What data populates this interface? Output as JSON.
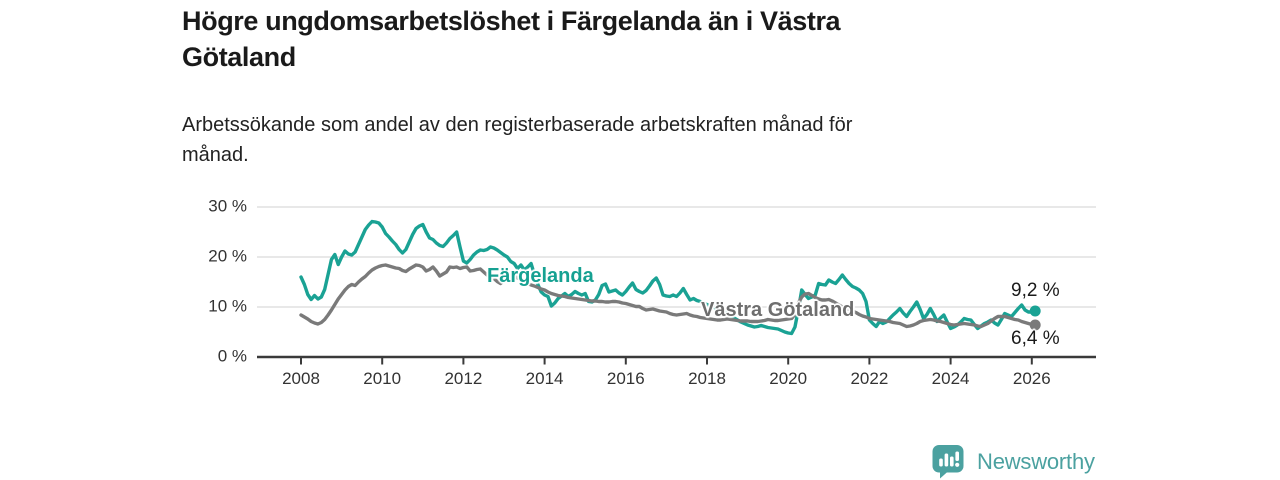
{
  "header": {
    "title": "Högre ungdomsarbetslöshet i Färgelanda än i Västra Götaland",
    "title_lines": [
      "Högre ungdomsarbetslöshet i Färgelanda än i Västra",
      "Götaland"
    ],
    "subtitle": "Arbetssökande som andel av den registerbaserade arbetskraften månad för månad.",
    "subtitle_lines": [
      "Arbetssökande som andel av den registerbaserade arbetskraften månad för",
      "månad."
    ]
  },
  "footer": {
    "brand": "Newsworthy",
    "brand_color": "#4ba1a0"
  },
  "colors": {
    "accent_teal": "#1aa294",
    "neutral_gray": "#7a7a7a",
    "gridline": "#d9d9d9",
    "axis": "#3a3a3a",
    "text_dark": "#1a1a1a"
  },
  "chart_data": {
    "type": "line",
    "title": "Högre ungdomsarbetslöshet i Färgelanda än i Västra Götaland",
    "subtitle": "Arbetssökande som andel av den registerbaserade arbetskraften månad för månad.",
    "x_unit": "month",
    "x_start": "2008-01",
    "x_end": "2026-02",
    "ylim": [
      0,
      33
    ],
    "grid": "horizontal",
    "legend_position": "inline-labels",
    "y_ticks": [
      {
        "value": 0,
        "label": "0 %"
      },
      {
        "value": 10,
        "label": "10 %"
      },
      {
        "value": 20,
        "label": "20 %"
      },
      {
        "value": 30,
        "label": "30 %"
      }
    ],
    "x_ticks": [
      {
        "year": 2008,
        "label": "2008"
      },
      {
        "year": 2010,
        "label": "2010"
      },
      {
        "year": 2012,
        "label": "2012"
      },
      {
        "year": 2014,
        "label": "2014"
      },
      {
        "year": 2016,
        "label": "2016"
      },
      {
        "year": 2018,
        "label": "2018"
      },
      {
        "year": 2020,
        "label": "2020"
      },
      {
        "year": 2022,
        "label": "2022"
      },
      {
        "year": 2024,
        "label": "2024"
      },
      {
        "year": 2026,
        "label": "2026"
      }
    ],
    "series": [
      {
        "id": "fargelanda",
        "name": "Färgelanda",
        "color": "#1aa294",
        "end_value": 9.2,
        "end_label": "9,2 %",
        "values": [
          16.0,
          14.5,
          12.5,
          11.5,
          12.3,
          11.6,
          12.0,
          13.5,
          16.5,
          19.5,
          20.5,
          18.5,
          20.0,
          21.2,
          20.6,
          20.4,
          21.0,
          22.5,
          24.0,
          25.5,
          26.4,
          27.1,
          27.0,
          26.8,
          26.0,
          24.7,
          24.0,
          23.2,
          22.5,
          21.5,
          20.8,
          21.5,
          23.0,
          24.5,
          25.7,
          26.2,
          26.5,
          25.0,
          23.8,
          23.5,
          22.8,
          22.3,
          22.1,
          22.8,
          23.7,
          24.3,
          25.0,
          22.0,
          19.2,
          18.8,
          19.5,
          20.4,
          21.0,
          21.4,
          21.3,
          21.5,
          22.0,
          21.8,
          21.4,
          20.9,
          20.4,
          20.0,
          19.1,
          18.7,
          17.7,
          18.4,
          17.4,
          18.0,
          18.7,
          16.5,
          14.5,
          13.0,
          12.4,
          12.1,
          10.2,
          10.8,
          11.7,
          12.2,
          12.7,
          12.1,
          12.5,
          13.1,
          12.7,
          12.4,
          12.7,
          11.1,
          11.0,
          11.4,
          12.5,
          14.3,
          14.6,
          13.0,
          13.2,
          13.4,
          12.8,
          12.4,
          13.1,
          14.0,
          14.8,
          13.5,
          13.1,
          12.8,
          13.3,
          14.2,
          15.2,
          15.8,
          14.5,
          12.4,
          12.2,
          12.1,
          12.4,
          12.1,
          12.8,
          13.7,
          12.5,
          11.4,
          11.7,
          11.3,
          11.1,
          10.8,
          10.5,
          10.2,
          10.0,
          9.6,
          9.3,
          9.0,
          8.6,
          8.2,
          7.8,
          7.4,
          7.0,
          6.7,
          6.4,
          6.2,
          6.0,
          6.1,
          6.3,
          6.1,
          5.9,
          5.8,
          5.7,
          5.6,
          5.3,
          5.0,
          4.8,
          4.7,
          6.0,
          9.5,
          13.4,
          12.5,
          11.7,
          12.0,
          12.4,
          14.7,
          14.5,
          14.4,
          15.4,
          15.0,
          14.7,
          15.5,
          16.4,
          15.5,
          14.7,
          14.1,
          13.8,
          13.4,
          12.7,
          11.1,
          7.4,
          6.7,
          6.1,
          7.1,
          6.7,
          7.0,
          7.7,
          8.4,
          9.0,
          9.7,
          8.8,
          8.1,
          9.1,
          10.0,
          11.0,
          9.5,
          7.7,
          8.5,
          9.7,
          8.5,
          7.1,
          7.8,
          8.4,
          7.0,
          5.7,
          6.0,
          6.4,
          7.0,
          7.7,
          7.5,
          7.4,
          6.5,
          5.7,
          6.2,
          6.7,
          7.0,
          7.4,
          6.8,
          6.4,
          7.5,
          8.7,
          8.4,
          8.1,
          8.9,
          9.7,
          10.4,
          9.4,
          9.0,
          9.0,
          9.2
        ]
      },
      {
        "id": "vastra-gotaland",
        "name": "Västra Götaland",
        "color": "#7a7a7a",
        "end_value": 6.4,
        "end_label": "6,4 %",
        "values": [
          8.4,
          8.0,
          7.6,
          7.1,
          6.8,
          6.6,
          6.9,
          7.5,
          8.4,
          9.4,
          10.5,
          11.6,
          12.5,
          13.4,
          14.1,
          14.5,
          14.3,
          15.0,
          15.6,
          16.1,
          16.8,
          17.4,
          17.8,
          18.1,
          18.3,
          18.4,
          18.2,
          18.0,
          17.8,
          17.7,
          17.3,
          17.1,
          17.6,
          18.0,
          18.4,
          18.3,
          18.0,
          17.2,
          17.5,
          18.0,
          17.2,
          16.2,
          16.6,
          17.0,
          18.0,
          17.9,
          18.0,
          17.7,
          17.9,
          18.0,
          17.2,
          17.3,
          17.5,
          17.6,
          17.0,
          16.4,
          16.1,
          15.7,
          15.1,
          14.7,
          15.3,
          16.0,
          16.4,
          16.2,
          15.8,
          15.5,
          15.0,
          14.7,
          14.4,
          14.2,
          13.9,
          13.6,
          13.4,
          13.0,
          12.7,
          12.5,
          12.3,
          12.2,
          12.1,
          11.9,
          11.8,
          11.7,
          11.6,
          11.5,
          11.4,
          11.3,
          11.2,
          11.2,
          11.1,
          11.1,
          11.0,
          11.0,
          11.1,
          11.1,
          11.0,
          10.8,
          10.7,
          10.5,
          10.3,
          10.1,
          10.1,
          9.7,
          9.4,
          9.5,
          9.6,
          9.4,
          9.2,
          9.1,
          9.0,
          8.7,
          8.5,
          8.4,
          8.5,
          8.6,
          8.7,
          8.4,
          8.2,
          8.1,
          7.9,
          7.8,
          7.7,
          7.6,
          7.5,
          7.4,
          7.4,
          7.5,
          7.6,
          7.5,
          7.4,
          7.3,
          7.2,
          7.2,
          7.2,
          7.1,
          7.1,
          7.1,
          7.2,
          7.3,
          7.5,
          7.4,
          7.3,
          7.3,
          7.4,
          7.5,
          7.6,
          7.7,
          8.5,
          10.8,
          12.0,
          12.6,
          12.7,
          12.3,
          11.9,
          11.6,
          11.4,
          11.4,
          11.5,
          11.2,
          10.8,
          10.4,
          10.0,
          9.7,
          9.5,
          9.2,
          8.9,
          8.5,
          8.2,
          8.0,
          7.7,
          7.6,
          7.5,
          7.4,
          7.3,
          7.2,
          7.1,
          6.9,
          6.8,
          6.7,
          6.4,
          6.1,
          6.2,
          6.4,
          6.7,
          7.1,
          7.3,
          7.4,
          7.5,
          7.4,
          7.2,
          7.1,
          6.9,
          6.7,
          6.5,
          6.4,
          6.5,
          6.6,
          6.7,
          6.6,
          6.5,
          6.4,
          6.2,
          6.1,
          6.4,
          6.7,
          7.2,
          7.7,
          8.1,
          8.1,
          8.1,
          7.9,
          7.7,
          7.5,
          7.4,
          7.1,
          6.9,
          6.7,
          6.5,
          6.4
        ]
      }
    ]
  }
}
